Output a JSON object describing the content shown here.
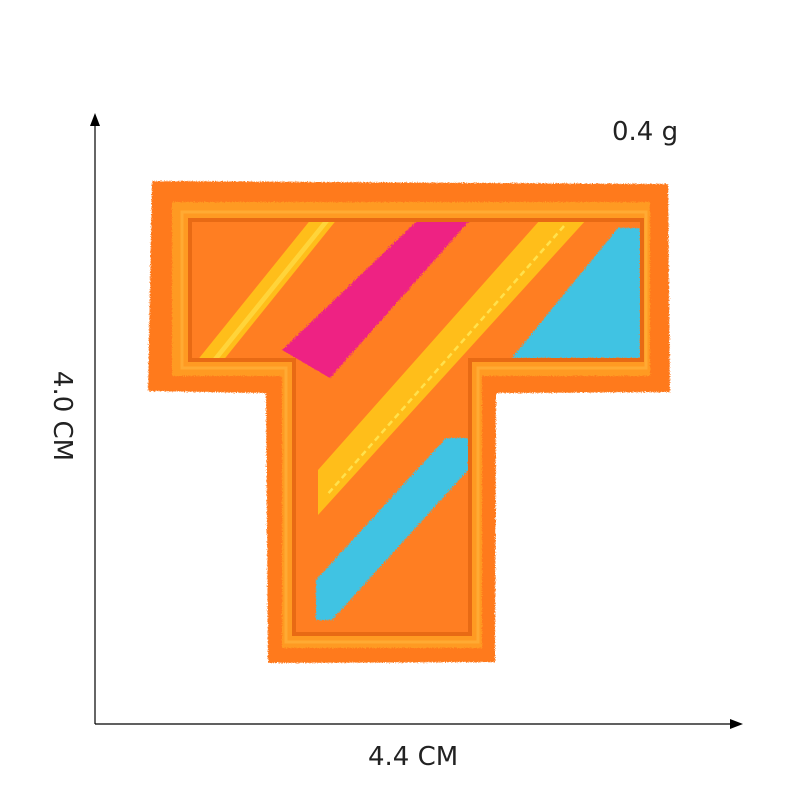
{
  "product": {
    "weight": "0.4 g",
    "width": "4.4 CM",
    "height": "4.0 CM"
  },
  "patch": {
    "letter_shape": "T",
    "colors": {
      "felt": "#ff7a1e",
      "border": "#ff9a24",
      "stripe_yellow": "#ffc21a",
      "stripe_pink": "#ee2283",
      "stripe_blue": "#3fc3e3"
    }
  },
  "axes": {
    "color": "#000000"
  }
}
